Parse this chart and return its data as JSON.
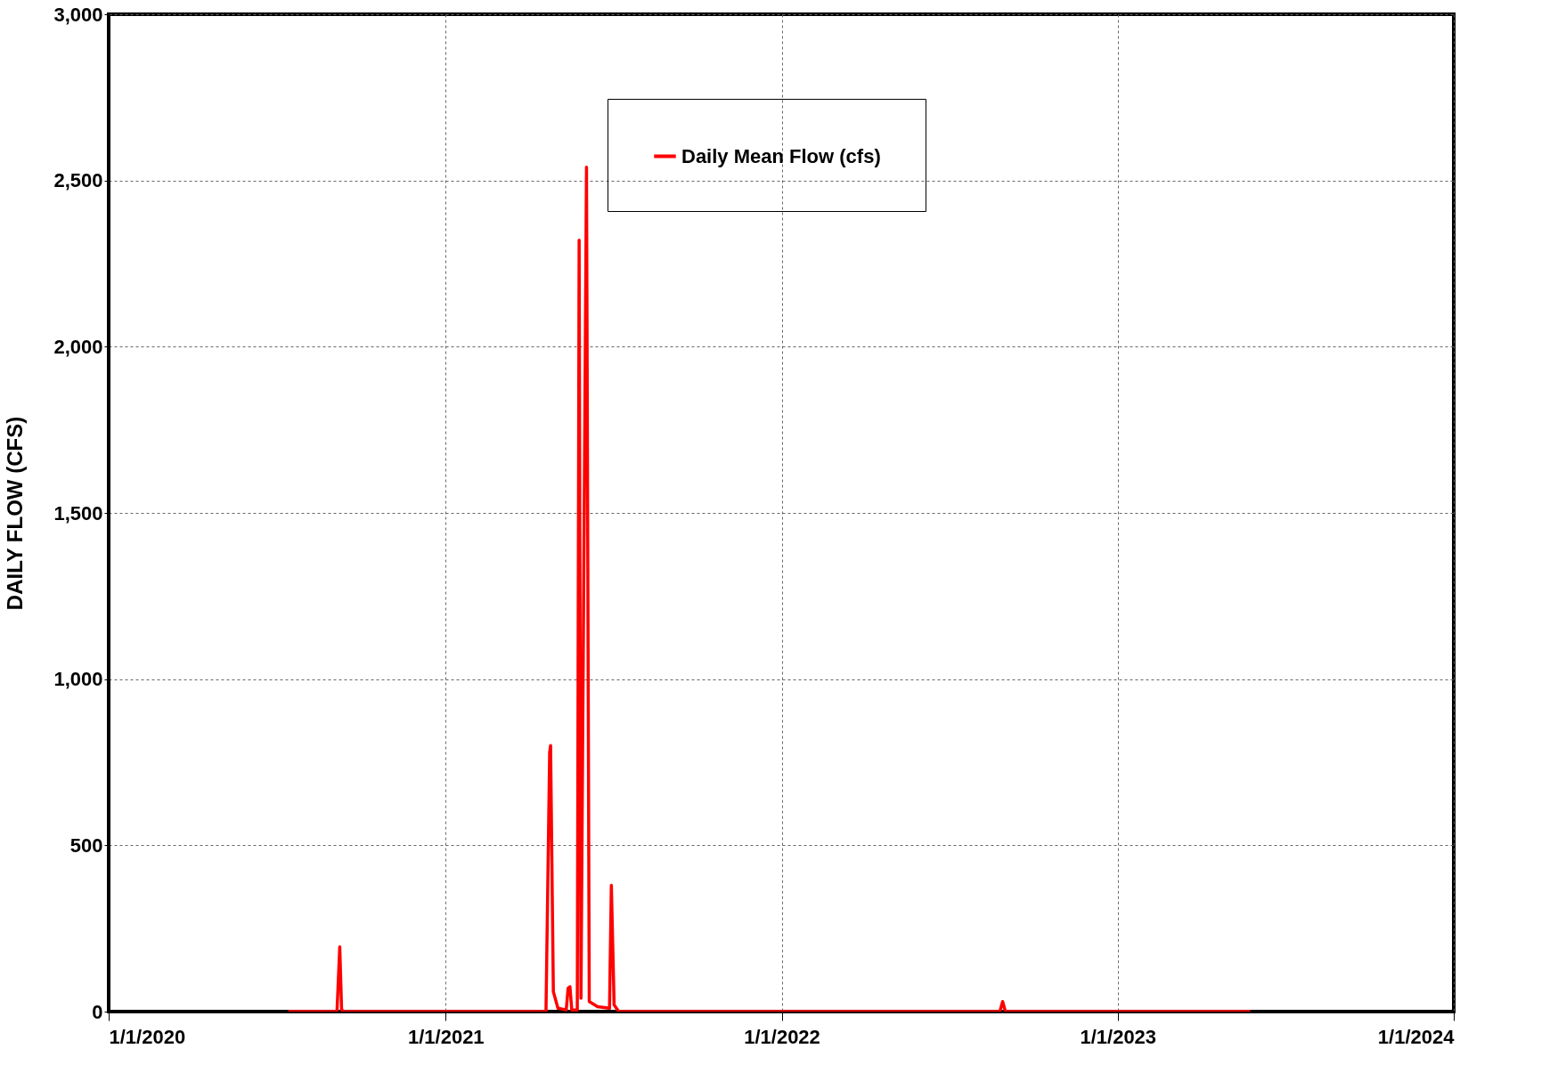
{
  "chart_data": {
    "type": "line",
    "ylabel": "DAILY FLOW (CFS)",
    "x": [
      "2020-07-14",
      "2020-09-05",
      "2020-09-08",
      "2020-09-10",
      "2020-09-13",
      "2021-04-20",
      "2021-04-24",
      "2021-04-25",
      "2021-04-28",
      "2021-05-03",
      "2021-05-12",
      "2021-05-14",
      "2021-05-16",
      "2021-05-18",
      "2021-05-24",
      "2021-05-26",
      "2021-05-28",
      "2021-06-03",
      "2021-06-06",
      "2021-06-15",
      "2021-06-28",
      "2021-06-30",
      "2021-07-03",
      "2021-07-08",
      "2022-08-26",
      "2022-08-29",
      "2022-09-01",
      "2023-05-25"
    ],
    "series": [
      {
        "name": "Daily Mean Flow (cfs)",
        "color": "#ff0000",
        "values": [
          0,
          0,
          195,
          5,
          0,
          0,
          780,
          800,
          60,
          10,
          5,
          70,
          75,
          5,
          5,
          2320,
          40,
          2540,
          30,
          15,
          10,
          380,
          20,
          0,
          0,
          30,
          0,
          0
        ]
      }
    ],
    "xlim": [
      "2020-01-01",
      "2024-01-01"
    ],
    "xticks": [
      {
        "value": "2020-01-01",
        "label": "1/1/2020"
      },
      {
        "value": "2021-01-01",
        "label": "1/1/2021"
      },
      {
        "value": "2022-01-01",
        "label": "1/1/2022"
      },
      {
        "value": "2023-01-01",
        "label": "1/1/2023"
      },
      {
        "value": "2024-01-01",
        "label": "1/1/2024"
      }
    ],
    "ylim": [
      0,
      3000
    ],
    "yticks": [
      0,
      {
        "value": 500,
        "label": "500"
      },
      {
        "value": 1000,
        "label": "1,000"
      },
      {
        "value": 1500,
        "label": "1,500"
      },
      {
        "value": 2000,
        "label": "2,000"
      },
      {
        "value": 2500,
        "label": "2,500"
      },
      {
        "value": 3000,
        "label": "3,000"
      }
    ],
    "grid": true,
    "legend": "top right",
    "line_style": "solid",
    "marker": "none"
  }
}
